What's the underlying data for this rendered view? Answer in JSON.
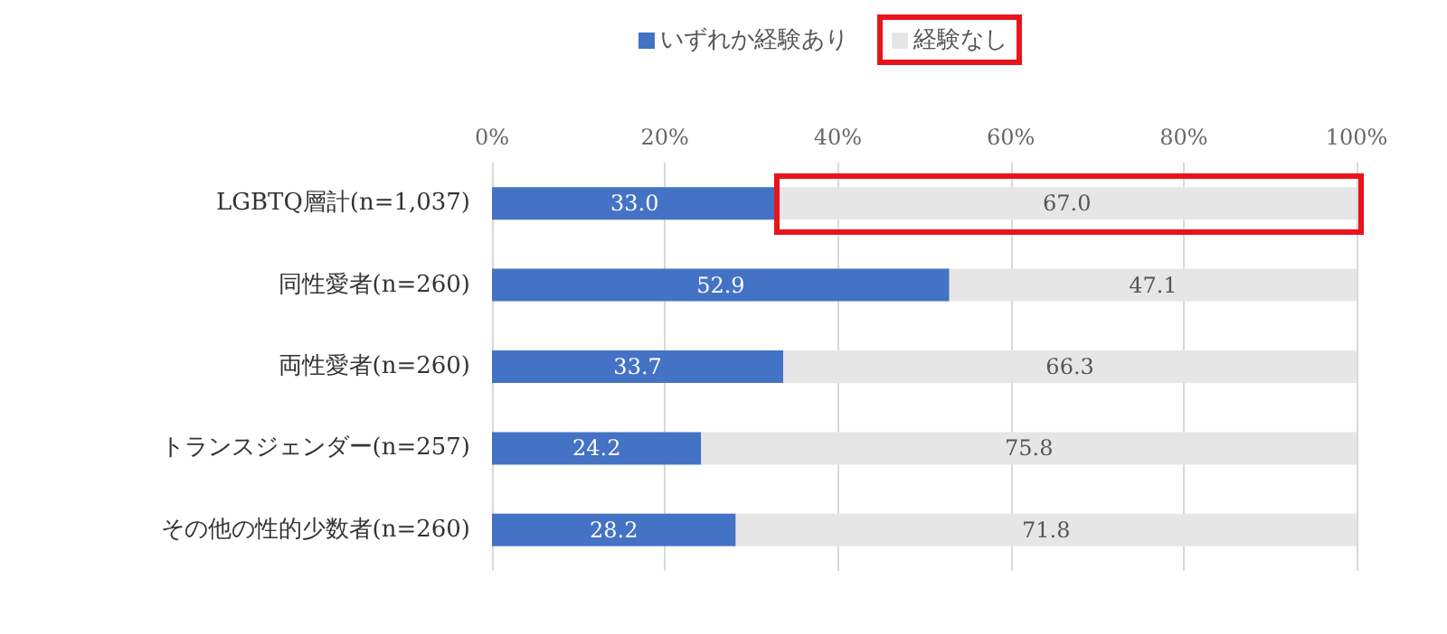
{
  "chart_data": {
    "type": "bar",
    "orientation": "horizontal",
    "stacked": true,
    "categories": [
      "LGBTQ層計(n=1,037)",
      "同性愛者(n=260)",
      "両性愛者(n=260)",
      "トランスジェンダー(n=257)",
      "その他の性的少数者(n=260)"
    ],
    "series": [
      {
        "name": "いずれか経験あり",
        "color": "#4472c4",
        "values": [
          33.0,
          52.9,
          33.7,
          24.2,
          28.2
        ],
        "value_labels": [
          "33.0",
          "52.9",
          "33.7",
          "24.2",
          "28.2"
        ]
      },
      {
        "name": "経験なし",
        "color": "#e7e6e6",
        "values": [
          67.0,
          47.1,
          66.3,
          75.8,
          71.8
        ],
        "value_labels": [
          "67.0",
          "47.1",
          "66.3",
          "75.8",
          "71.8"
        ]
      }
    ],
    "xlim": [
      0,
      100
    ],
    "xticks": [
      {
        "value": 0,
        "label": "0%"
      },
      {
        "value": 20,
        "label": "20%"
      },
      {
        "value": 40,
        "label": "40%"
      },
      {
        "value": 60,
        "label": "60%"
      },
      {
        "value": 80,
        "label": "80%"
      },
      {
        "value": 100,
        "label": "100%"
      }
    ],
    "grid": "x",
    "legend": "top"
  }
}
